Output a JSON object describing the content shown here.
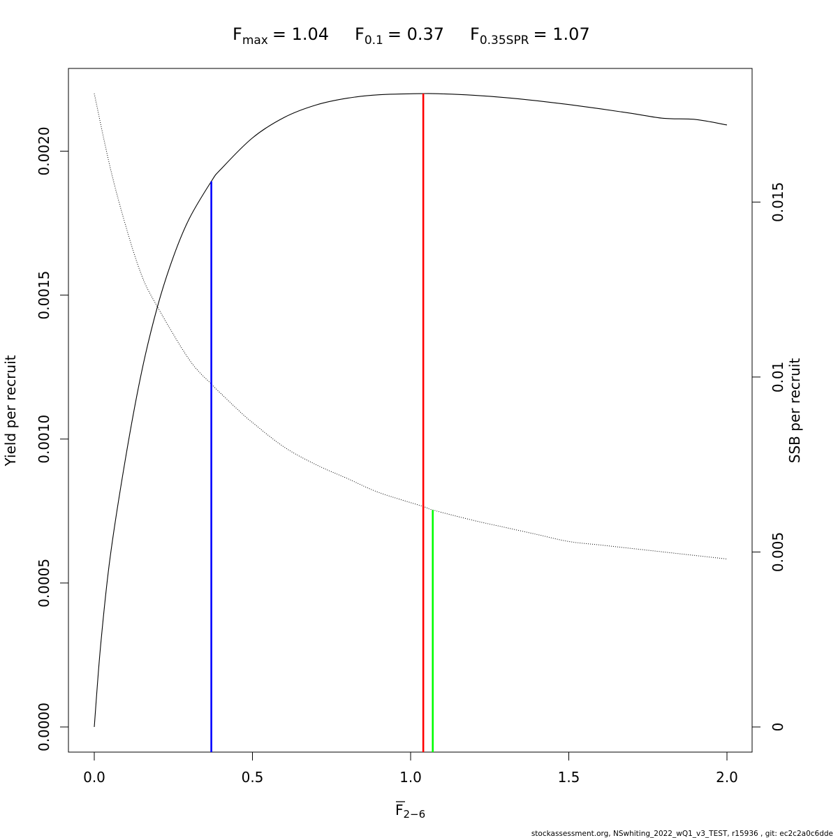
{
  "title": {
    "fmax": {
      "base": "F",
      "sub": "max",
      "value": "= 1.04"
    },
    "f01": {
      "base": "F",
      "sub": "0.1",
      "value": "= 0.37"
    },
    "f035spr": {
      "base": "F",
      "sub": "0.35SPR",
      "value": "= 1.07"
    }
  },
  "footer": "stockassessment.org, NSwhiting_2022_wQ1_v3_TEST, r15936 , git: ec2c2a0c6dde",
  "chart_data": {
    "type": "line",
    "xlabel": {
      "base": "F",
      "sub": "2−6"
    },
    "ylabel_left": "Yield per recruit",
    "ylabel_right": "SSB per recruit",
    "xlim": [
      0,
      2
    ],
    "ylim_left": [
      0,
      0.0022
    ],
    "ylim_right": [
      0,
      0.0181
    ],
    "x_ticks": [
      {
        "value": 0.0,
        "label": "0.0"
      },
      {
        "value": 0.5,
        "label": "0.5"
      },
      {
        "value": 1.0,
        "label": "1.0"
      },
      {
        "value": 1.5,
        "label": "1.5"
      },
      {
        "value": 2.0,
        "label": "2.0"
      }
    ],
    "y_left_ticks": [
      {
        "value": 0.0,
        "label": "0.0000"
      },
      {
        "value": 0.0005,
        "label": "0.0005"
      },
      {
        "value": 0.001,
        "label": "0.0010"
      },
      {
        "value": 0.0015,
        "label": "0.0015"
      },
      {
        "value": 0.002,
        "label": "0.0020"
      }
    ],
    "y_right_ticks": [
      {
        "value": 0.0,
        "label": "0"
      },
      {
        "value": 0.005,
        "label": "0.005"
      },
      {
        "value": 0.01,
        "label": "0.01"
      },
      {
        "value": 0.015,
        "label": "0.015"
      }
    ],
    "series": [
      {
        "axis": "left",
        "style": "solid",
        "color": "#000000",
        "points": [
          [
            0,
            0
          ],
          [
            0.02,
            0.000282
          ],
          [
            0.05,
            0.000588
          ],
          [
            0.1,
            0.000941
          ],
          [
            0.15,
            0.001235
          ],
          [
            0.2,
            0.001461
          ],
          [
            0.25,
            0.001633
          ],
          [
            0.3,
            0.001765
          ],
          [
            0.37,
            0.001895
          ],
          [
            0.4,
            0.001937
          ],
          [
            0.5,
            0.002046
          ],
          [
            0.6,
            0.002117
          ],
          [
            0.7,
            0.00216
          ],
          [
            0.8,
            0.002184
          ],
          [
            0.9,
            0.002196
          ],
          [
            1.04,
            0.0022
          ],
          [
            1.1,
            0.002199
          ],
          [
            1.2,
            0.002194
          ],
          [
            1.3,
            0.002186
          ],
          [
            1.4,
            0.002175
          ],
          [
            1.5,
            0.002162
          ],
          [
            1.6,
            0.002147
          ],
          [
            1.7,
            0.002131
          ],
          [
            1.8,
            0.002114
          ],
          [
            1.9,
            0.00211
          ],
          [
            2.0,
            0.002091
          ]
        ]
      },
      {
        "axis": "right",
        "style": "dotted",
        "color": "#000000",
        "points": [
          [
            0,
            0.0181
          ],
          [
            0.05,
            0.016
          ],
          [
            0.1,
            0.0143
          ],
          [
            0.15,
            0.0129
          ],
          [
            0.2,
            0.012
          ],
          [
            0.3,
            0.0105
          ],
          [
            0.37,
            0.0098
          ],
          [
            0.45,
            0.0091
          ],
          [
            0.5,
            0.0087
          ],
          [
            0.6,
            0.008
          ],
          [
            0.7,
            0.0075
          ],
          [
            0.8,
            0.0071
          ],
          [
            0.9,
            0.0067
          ],
          [
            1.04,
            0.0063
          ],
          [
            1.07,
            0.0062
          ],
          [
            1.2,
            0.0059
          ],
          [
            1.3,
            0.0057
          ],
          [
            1.4,
            0.0055
          ],
          [
            1.5,
            0.0053
          ],
          [
            1.6,
            0.0052
          ],
          [
            1.7,
            0.0051
          ],
          [
            1.8,
            0.005
          ],
          [
            1.9,
            0.0049
          ],
          [
            2.0,
            0.0048
          ]
        ]
      }
    ],
    "reference_lines": [
      {
        "name": "F0.1",
        "x": 0.37,
        "axis": "left",
        "y_top": 0.001895,
        "color": "#0000ff"
      },
      {
        "name": "Fmax",
        "x": 1.04,
        "axis": "left",
        "y_top": 0.0022,
        "color": "#ff0000"
      },
      {
        "name": "F0.35SPR",
        "x": 1.07,
        "axis": "right",
        "y_top": 0.0062,
        "color": "#00ff00"
      }
    ]
  }
}
